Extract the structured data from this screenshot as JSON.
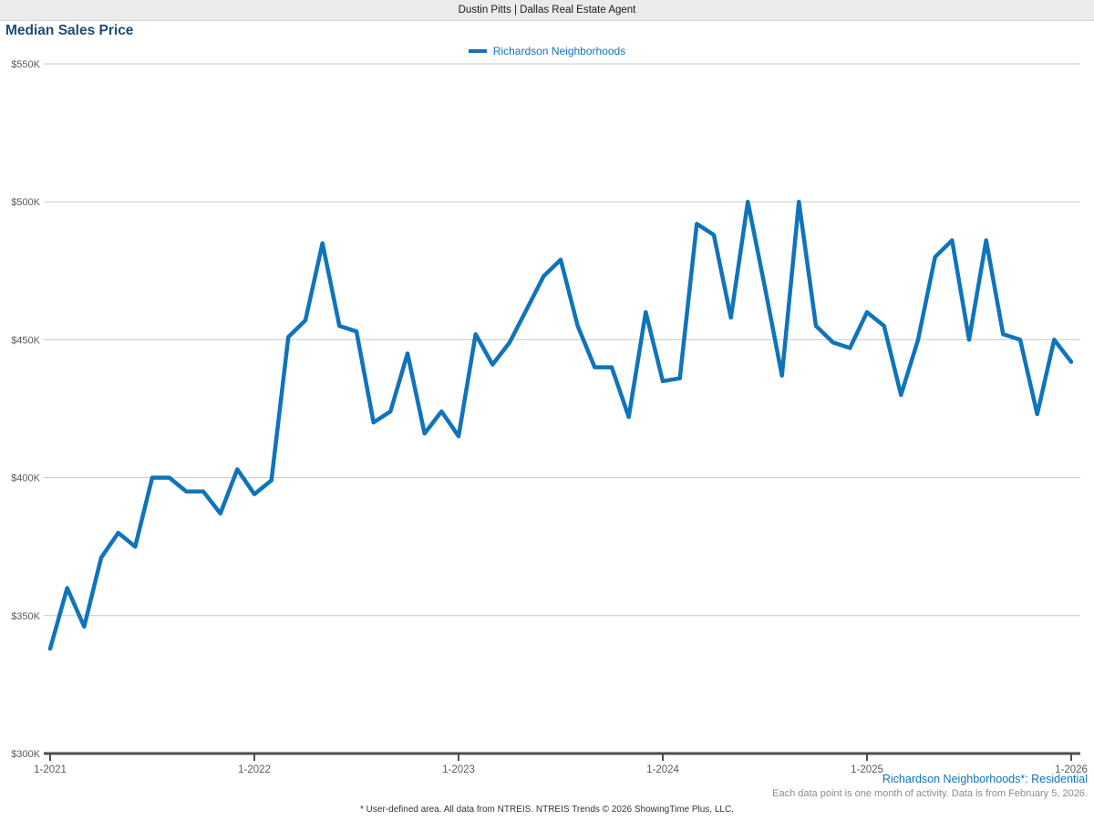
{
  "header": {
    "title": "Dustin Pitts | Dallas Real Estate Agent"
  },
  "page_title": "Median Sales Price",
  "legend": {
    "series_label": "Richardson Neighborhoods"
  },
  "colors": {
    "line": "#0f74ba",
    "title_navy": "#1f4a71",
    "tick_text": "#595959",
    "gridline": "#c9c9c9",
    "axis": "#4d4d4d",
    "header_bg": "#ebebeb"
  },
  "chart_data": {
    "type": "line",
    "title": "Median Sales Price",
    "series_name": "Richardson Neighborhoods",
    "x_start": "1-2021",
    "x_end": "1-2026",
    "months_per_point": 1,
    "x_tick_labels": [
      "1-2021",
      "1-2022",
      "1-2023",
      "1-2024",
      "1-2025",
      "1-2026"
    ],
    "y_tick_labels": [
      "$300K",
      "$350K",
      "$400K",
      "$450K",
      "$500K",
      "$550K"
    ],
    "y_ticks": [
      300,
      350,
      400,
      450,
      500,
      550
    ],
    "ylim": [
      300,
      550
    ],
    "unit": "thousand USD",
    "grid": "horizontal",
    "legend_position": "top-center",
    "values_k": [
      338,
      360,
      346,
      371,
      380,
      375,
      400,
      400,
      395,
      395,
      387,
      403,
      394,
      399,
      451,
      457,
      485,
      455,
      453,
      420,
      424,
      445,
      416,
      424,
      415,
      452,
      441,
      449,
      461,
      473,
      479,
      455,
      440,
      440,
      422,
      460,
      435,
      436,
      492,
      488,
      458,
      500,
      469,
      437,
      500,
      455,
      449,
      447,
      460,
      455,
      430,
      450,
      480,
      486,
      450,
      486,
      452,
      450,
      423,
      450,
      442
    ]
  },
  "footnotes": {
    "right_blue": "Richardson Neighborhoods*: Residential",
    "right_gray": "Each data point is one month of activity. Data is from February 5, 2026.",
    "bottom_center": "* User-defined area. All data from NTREIS. NTREIS Trends © 2026 ShowingTime Plus, LLC."
  }
}
